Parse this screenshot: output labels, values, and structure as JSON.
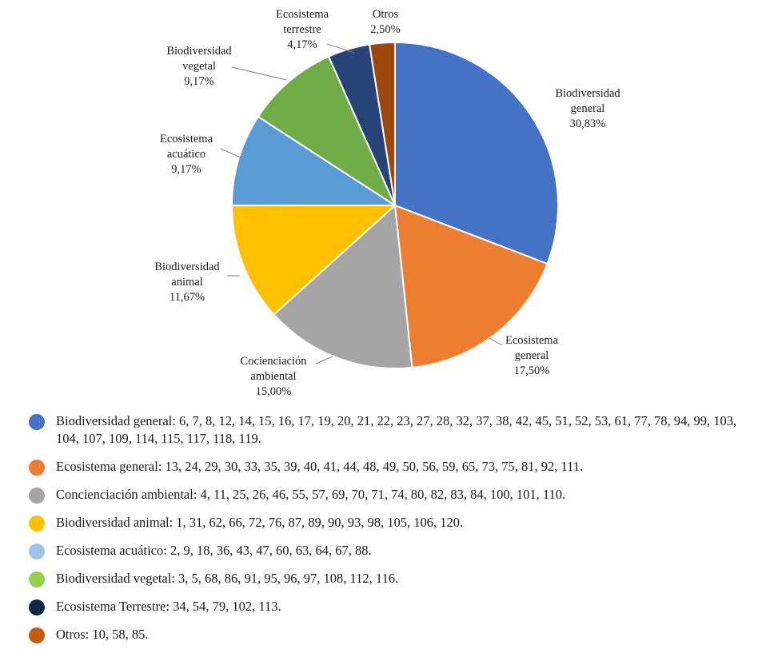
{
  "chart_data": {
    "type": "pie",
    "title": "",
    "slices": [
      {
        "label_lines": [
          "Biodiversidad",
          "general"
        ],
        "value": 30.83,
        "value_text": "30,83%",
        "color": "#4472C4"
      },
      {
        "label_lines": [
          "Ecosistema",
          "general"
        ],
        "value": 17.5,
        "value_text": "17,50%",
        "color": "#ED7D31"
      },
      {
        "label_lines": [
          "Cocienciación",
          "ambiental"
        ],
        "value": 15.0,
        "value_text": "15,00%",
        "color": "#A5A5A5"
      },
      {
        "label_lines": [
          "Biodiversidad",
          "animal"
        ],
        "value": 11.67,
        "value_text": "11,67%",
        "color": "#FFC000"
      },
      {
        "label_lines": [
          "Ecosistema",
          "acuático"
        ],
        "value": 9.17,
        "value_text": "9,17%",
        "color": "#5B9BD5"
      },
      {
        "label_lines": [
          "Biodiversidad",
          "vegetal"
        ],
        "value": 9.17,
        "value_text": "9,17%",
        "color": "#70AD47"
      },
      {
        "label_lines": [
          "Ecosistema",
          "terrestre"
        ],
        "value": 4.17,
        "value_text": "4,17%",
        "color": "#264478"
      },
      {
        "label_lines": [
          "Otros"
        ],
        "value": 2.5,
        "value_text": "2,50%",
        "color": "#9E480E"
      }
    ]
  },
  "legend": [
    {
      "text": "Biodiversidad general: 6, 7, 8, 12, 14, 15, 16, 17, 19, 20, 21, 22, 23, 27, 28, 32, 37, 38, 42, 45, 51, 52, 53, 61, 77, 78, 94, 99, 103, 104, 107, 109, 114, 115, 117, 118, 119.",
      "color": "#4472C4"
    },
    {
      "text": "Ecosistema general: 13, 24, 29, 30, 33, 35, 39, 40, 41, 44, 48, 49, 50, 56, 59, 65, 73, 75, 81, 92, 111.",
      "color": "#ED7D31"
    },
    {
      "text": "Concienciación ambiental: 4, 11, 25, 26, 46, 55, 57, 69, 70, 71, 74, 80, 82, 83, 84, 100, 101, 110.",
      "color": "#A5A5A5"
    },
    {
      "text": "Biodiversidad animal: 1, 31, 62, 66, 72, 76, 87, 89, 90, 93, 98, 105, 106, 120.",
      "color": "#FFC000"
    },
    {
      "text": "Ecosistema acuático: 2, 9, 18, 36, 43, 47, 60, 63, 64, 67, 88.",
      "color": "#9DC3E6"
    },
    {
      "text": "Biodiversidad vegetal: 3, 5, 68, 86, 91, 95, 96, 97, 108, 112, 116.",
      "color": "#92D050"
    },
    {
      "text": "Ecosistema Terrestre: 34, 54, 79, 102, 113.",
      "color": "#0E2841"
    },
    {
      "text": "Otros: 10, 58, 85.",
      "color": "#C55A11"
    }
  ]
}
